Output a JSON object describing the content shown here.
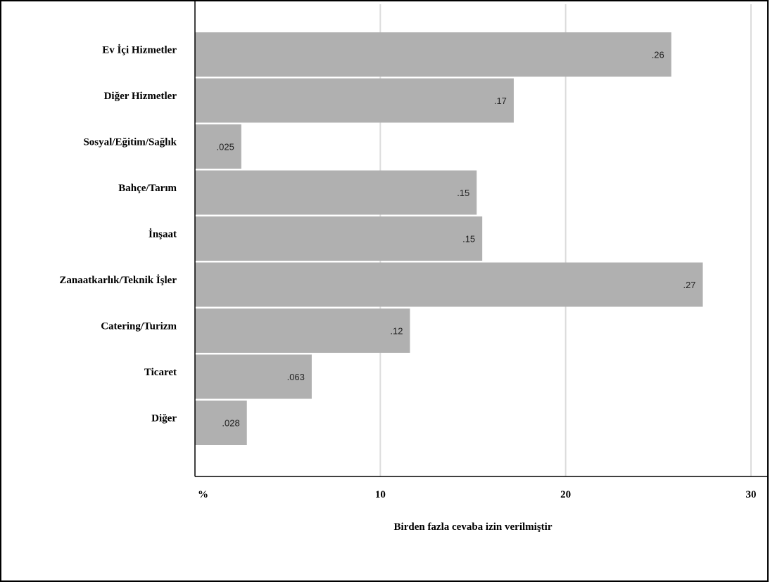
{
  "chart_data": {
    "type": "bar",
    "orientation": "horizontal",
    "categories": [
      "Ev İçi Hizmetler",
      "Diğer Hizmetler",
      "Sosyal/Eğitim/Sağlık",
      "Bahçe/Tarım",
      "İnşaat",
      "Zanaatkarlık/Teknik İşler",
      "Catering/Turizm",
      "Ticaret",
      "Diğer"
    ],
    "values": [
      25.7,
      17.2,
      2.5,
      15.2,
      15.5,
      27.4,
      11.6,
      6.3,
      2.8
    ],
    "data_labels": [
      ".26",
      ".17",
      ".025",
      ".15",
      ".15",
      ".27",
      ".12",
      ".063",
      ".028"
    ],
    "xlim": [
      0,
      30
    ],
    "x_ticks": [
      0,
      10,
      20,
      30
    ],
    "x_tick_labels": [
      "%",
      "10",
      "20",
      "30"
    ],
    "xlabel": "Birden fazla cevaba izin verilmiştir",
    "ylabel": "",
    "title": "",
    "grid": "vertical",
    "legend": "none",
    "bar_color": "#b0b0b0",
    "grid_color": "#dcdcdc"
  }
}
